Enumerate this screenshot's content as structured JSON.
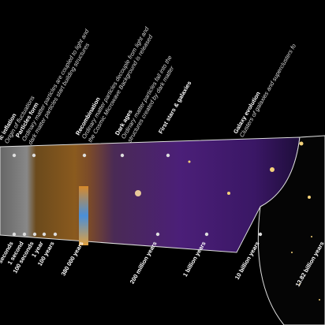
{
  "epochs": [
    {
      "title": "ic inflation",
      "lines": [
        "Origin of fluctuations"
      ]
    },
    {
      "title": "Particles form",
      "lines": [
        "Ordinary matter particles are coupled to light and",
        "dark matter particles start building structures"
      ]
    },
    {
      "title": "Recombination",
      "lines": [
        "Ordinary matter particles decouple from light and",
        "the Cosmic Microwave Background is released"
      ]
    },
    {
      "title": "Dark ages",
      "lines": [
        "Ordinary matter particles fall into the",
        "structures created by dark matter"
      ]
    },
    {
      "title": "First stars & galaxies",
      "lines": []
    },
    {
      "title": "Galaxy evolution",
      "lines": [
        "Clusters of galaxies and superclusters fo"
      ]
    }
  ],
  "times": [
    "seconds",
    "1 second",
    "100 seconds",
    "1 year",
    "100 years",
    "380 000 years",
    "200 million years",
    "1 billion years",
    "10 billion years",
    "13.82 billion years"
  ]
}
